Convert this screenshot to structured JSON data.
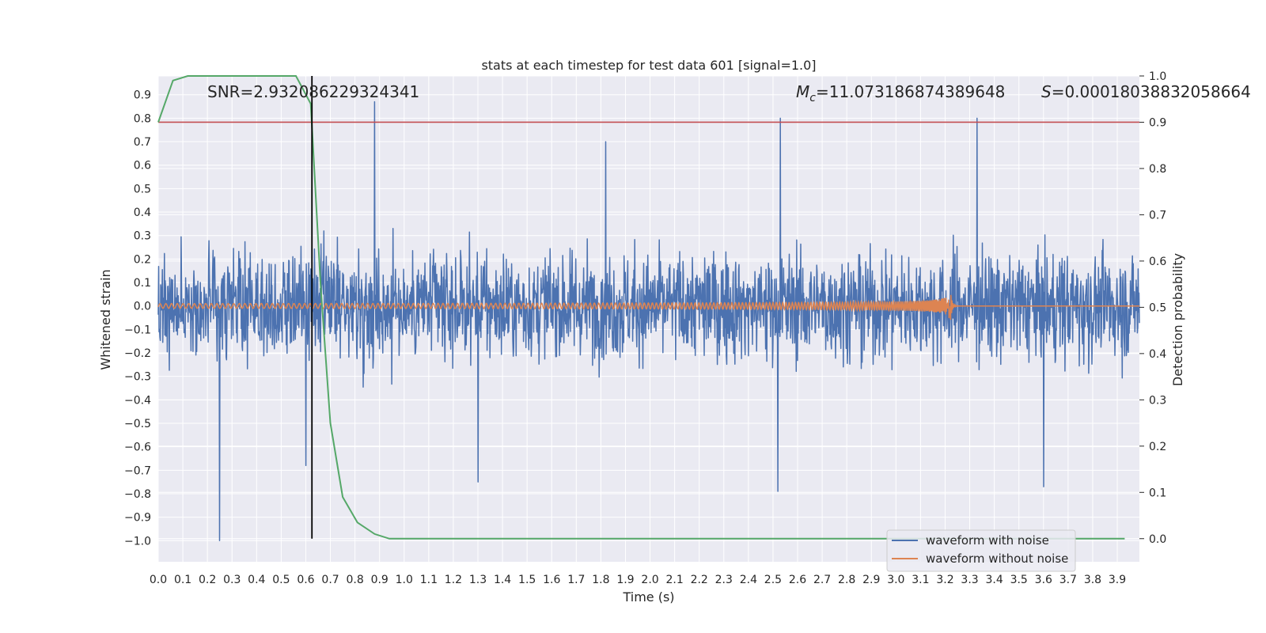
{
  "chart_data": {
    "type": "line",
    "title": "stats at each timestep for test data 601 [signal=1.0]",
    "xlabel": "Time (s)",
    "ylabel": "Whitened strain",
    "y2label": "Detection probability",
    "xlim": [
      0.0,
      3.99
    ],
    "ylim": [
      -1.09,
      0.98
    ],
    "y2lim": [
      -0.05,
      1.0
    ],
    "x_ticks": [
      0.0,
      0.1,
      0.2,
      0.3,
      0.4,
      0.5,
      0.6,
      0.7,
      0.8,
      0.9,
      1.0,
      1.1,
      1.2,
      1.3,
      1.4,
      1.5,
      1.6,
      1.7,
      1.8,
      1.9,
      2.0,
      2.1,
      2.2,
      2.3,
      2.4,
      2.5,
      2.6,
      2.7,
      2.8,
      2.9,
      3.0,
      3.1,
      3.2,
      3.3,
      3.4,
      3.5,
      3.6,
      3.7,
      3.8,
      3.9
    ],
    "y_ticks": [
      0.9,
      0.8,
      0.7,
      0.6,
      0.5,
      0.4,
      0.3,
      0.2,
      0.1,
      0.0,
      -0.1,
      -0.2,
      -0.3,
      -0.4,
      -0.5,
      -0.6,
      -0.7,
      -0.8,
      -0.9,
      -1.0
    ],
    "y2_ticks": [
      0.0,
      0.1,
      0.2,
      0.3,
      0.4,
      0.5,
      0.6,
      0.7,
      0.8,
      0.9,
      1.0
    ],
    "annotations": {
      "snr": "SNR=2.932086229324341",
      "mc": "=11.073186874389648",
      "s": "=0.00018038832058664"
    },
    "series": [
      {
        "name": "waveform with noise",
        "color": "#4c72b0",
        "description_stats": {
          "amplitude_typical": 0.35,
          "max": 0.87,
          "min": -1.0
        },
        "spikes": [
          [
            0.25,
            -1.0
          ],
          [
            0.88,
            0.87
          ],
          [
            1.82,
            0.7
          ],
          [
            2.53,
            0.8
          ],
          [
            2.52,
            -0.79
          ],
          [
            3.33,
            0.8
          ],
          [
            3.6,
            -0.77
          ],
          [
            1.3,
            -0.75
          ],
          [
            0.6,
            -0.68
          ]
        ]
      },
      {
        "name": "waveform without noise",
        "color": "#dd8452",
        "chirp": {
          "start": 0.0,
          "merger": 3.22,
          "base_amplitude": 0.01,
          "peak_amplitude": 0.1,
          "end_value": 0.0
        }
      }
    ],
    "detection_probability": {
      "name": "detection probability",
      "color": "#55a868",
      "x": [
        0.0,
        0.06,
        0.12,
        0.2,
        0.3,
        0.4,
        0.5,
        0.56,
        0.62,
        0.66,
        0.7,
        0.75,
        0.81,
        0.88,
        0.94,
        1.0,
        1.5,
        2.0,
        2.5,
        3.0,
        3.5,
        3.93
      ],
      "y": [
        0.9,
        0.99,
        1.0,
        1.0,
        1.0,
        1.0,
        1.0,
        1.0,
        0.94,
        0.55,
        0.25,
        0.09,
        0.035,
        0.01,
        0.0,
        0.0,
        0.0,
        0.0,
        0.0,
        0.0,
        0.0,
        0.0
      ]
    },
    "threshold": {
      "value": 0.9,
      "axis": "y2",
      "color": "#c44e52"
    },
    "vertical_marker": {
      "x": 0.625,
      "color": "#000000"
    },
    "legend_position": "bottom-right"
  }
}
